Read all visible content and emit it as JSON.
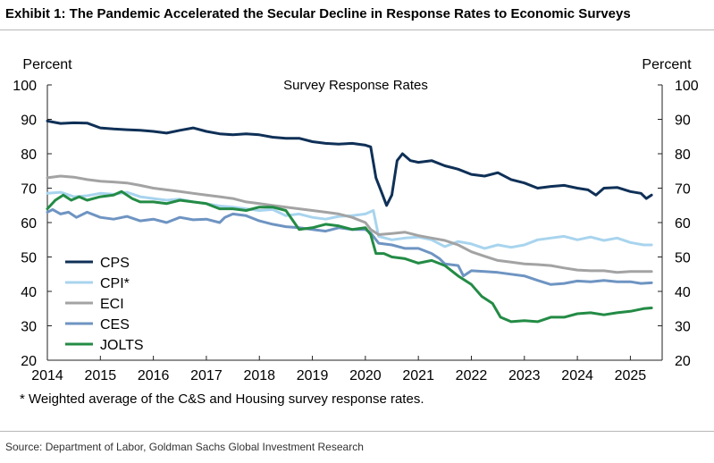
{
  "exhibit_title": "Exhibit 1: The Pandemic Accelerated the Secular Decline in Response Rates to Economic Surveys",
  "footnote": "* Weighted average of the C&S and Housing survey response rates.",
  "source": "Source: Department of Labor, Goldman Sachs Global Investment Research",
  "chart_data": {
    "type": "line",
    "title": "Survey Response Rates",
    "ylabel_left": "Percent",
    "ylabel_right": "Percent",
    "xlabel": "",
    "xlim": [
      2014,
      2025.6
    ],
    "ylim": [
      20,
      100
    ],
    "x_ticks": [
      "2014",
      "2015",
      "2016",
      "2017",
      "2018",
      "2019",
      "2020",
      "2021",
      "2022",
      "2023",
      "2024",
      "2025"
    ],
    "y_ticks": [
      "20",
      "30",
      "40",
      "50",
      "60",
      "70",
      "80",
      "90",
      "100"
    ],
    "grid": false,
    "legend_position": "bottom-left",
    "series": [
      {
        "name": "CPS",
        "color": "#0f3057",
        "points": [
          [
            2014.0,
            89.5
          ],
          [
            2014.25,
            88.8
          ],
          [
            2014.5,
            89.0
          ],
          [
            2014.75,
            88.9
          ],
          [
            2015.0,
            87.5
          ],
          [
            2015.25,
            87.2
          ],
          [
            2015.5,
            87.0
          ],
          [
            2015.75,
            86.8
          ],
          [
            2016.0,
            86.5
          ],
          [
            2016.25,
            86.0
          ],
          [
            2016.5,
            86.8
          ],
          [
            2016.75,
            87.5
          ],
          [
            2017.0,
            86.5
          ],
          [
            2017.25,
            85.8
          ],
          [
            2017.5,
            85.5
          ],
          [
            2017.75,
            85.8
          ],
          [
            2018.0,
            85.5
          ],
          [
            2018.25,
            84.8
          ],
          [
            2018.5,
            84.5
          ],
          [
            2018.75,
            84.5
          ],
          [
            2019.0,
            83.5
          ],
          [
            2019.25,
            83.0
          ],
          [
            2019.5,
            82.8
          ],
          [
            2019.75,
            83.0
          ],
          [
            2020.0,
            82.5
          ],
          [
            2020.1,
            82.0
          ],
          [
            2020.2,
            73.0
          ],
          [
            2020.3,
            69.0
          ],
          [
            2020.4,
            65.0
          ],
          [
            2020.5,
            68.0
          ],
          [
            2020.6,
            78.0
          ],
          [
            2020.7,
            80.0
          ],
          [
            2020.85,
            78.0
          ],
          [
            2021.0,
            77.5
          ],
          [
            2021.25,
            78.0
          ],
          [
            2021.5,
            76.5
          ],
          [
            2021.75,
            75.5
          ],
          [
            2022.0,
            74.0
          ],
          [
            2022.25,
            73.5
          ],
          [
            2022.5,
            74.5
          ],
          [
            2022.75,
            72.5
          ],
          [
            2023.0,
            71.5
          ],
          [
            2023.25,
            70.0
          ],
          [
            2023.5,
            70.5
          ],
          [
            2023.75,
            70.8
          ],
          [
            2024.0,
            70.0
          ],
          [
            2024.2,
            69.5
          ],
          [
            2024.35,
            68.0
          ],
          [
            2024.5,
            70.0
          ],
          [
            2024.75,
            70.2
          ],
          [
            2025.0,
            69.0
          ],
          [
            2025.2,
            68.5
          ],
          [
            2025.3,
            67.0
          ],
          [
            2025.4,
            68.0
          ]
        ]
      },
      {
        "name": "CPI*",
        "color": "#a8d4ee",
        "points": [
          [
            2014.0,
            68.5
          ],
          [
            2014.25,
            68.8
          ],
          [
            2014.5,
            67.5
          ],
          [
            2014.75,
            67.8
          ],
          [
            2015.0,
            68.5
          ],
          [
            2015.25,
            68.2
          ],
          [
            2015.5,
            68.8
          ],
          [
            2015.75,
            67.5
          ],
          [
            2016.0,
            67.0
          ],
          [
            2016.25,
            66.5
          ],
          [
            2016.5,
            66.8
          ],
          [
            2016.75,
            66.0
          ],
          [
            2017.0,
            65.5
          ],
          [
            2017.25,
            64.8
          ],
          [
            2017.5,
            64.5
          ],
          [
            2017.75,
            64.0
          ],
          [
            2018.0,
            63.5
          ],
          [
            2018.25,
            63.8
          ],
          [
            2018.5,
            62.0
          ],
          [
            2018.75,
            62.5
          ],
          [
            2019.0,
            61.5
          ],
          [
            2019.25,
            61.0
          ],
          [
            2019.5,
            61.8
          ],
          [
            2019.75,
            62.0
          ],
          [
            2020.0,
            62.5
          ],
          [
            2020.15,
            63.5
          ],
          [
            2020.25,
            56.0
          ],
          [
            2020.5,
            55.0
          ],
          [
            2020.75,
            55.5
          ],
          [
            2021.0,
            55.8
          ],
          [
            2021.25,
            55.0
          ],
          [
            2021.5,
            53.0
          ],
          [
            2021.75,
            54.5
          ],
          [
            2022.0,
            53.8
          ],
          [
            2022.25,
            52.5
          ],
          [
            2022.5,
            53.5
          ],
          [
            2022.75,
            52.8
          ],
          [
            2023.0,
            53.5
          ],
          [
            2023.25,
            55.0
          ],
          [
            2023.5,
            55.5
          ],
          [
            2023.75,
            56.0
          ],
          [
            2024.0,
            55.0
          ],
          [
            2024.25,
            55.8
          ],
          [
            2024.5,
            54.8
          ],
          [
            2024.75,
            55.5
          ],
          [
            2025.0,
            54.2
          ],
          [
            2025.25,
            53.5
          ],
          [
            2025.4,
            53.5
          ]
        ]
      },
      {
        "name": "ECI",
        "color": "#a3a3a3",
        "points": [
          [
            2014.0,
            73.0
          ],
          [
            2014.25,
            73.5
          ],
          [
            2014.5,
            73.2
          ],
          [
            2014.75,
            72.5
          ],
          [
            2015.0,
            72.0
          ],
          [
            2015.25,
            71.8
          ],
          [
            2015.5,
            71.5
          ],
          [
            2015.75,
            70.8
          ],
          [
            2016.0,
            70.0
          ],
          [
            2016.25,
            69.5
          ],
          [
            2016.5,
            69.0
          ],
          [
            2016.75,
            68.5
          ],
          [
            2017.0,
            68.0
          ],
          [
            2017.25,
            67.5
          ],
          [
            2017.5,
            67.0
          ],
          [
            2017.75,
            66.0
          ],
          [
            2018.0,
            65.5
          ],
          [
            2018.25,
            65.0
          ],
          [
            2018.5,
            64.5
          ],
          [
            2018.75,
            64.0
          ],
          [
            2019.0,
            63.5
          ],
          [
            2019.25,
            63.0
          ],
          [
            2019.5,
            62.5
          ],
          [
            2019.75,
            61.5
          ],
          [
            2020.0,
            60.0
          ],
          [
            2020.1,
            58.0
          ],
          [
            2020.25,
            56.5
          ],
          [
            2020.5,
            56.8
          ],
          [
            2020.75,
            57.2
          ],
          [
            2021.0,
            56.2
          ],
          [
            2021.25,
            55.5
          ],
          [
            2021.5,
            54.8
          ],
          [
            2021.75,
            53.5
          ],
          [
            2022.0,
            51.5
          ],
          [
            2022.25,
            50.2
          ],
          [
            2022.5,
            49.0
          ],
          [
            2022.75,
            48.5
          ],
          [
            2023.0,
            48.0
          ],
          [
            2023.25,
            47.8
          ],
          [
            2023.5,
            47.5
          ],
          [
            2023.75,
            46.8
          ],
          [
            2024.0,
            46.2
          ],
          [
            2024.25,
            46.0
          ],
          [
            2024.5,
            46.0
          ],
          [
            2024.75,
            45.5
          ],
          [
            2025.0,
            45.8
          ],
          [
            2025.4,
            45.8
          ]
        ]
      },
      {
        "name": "CES",
        "color": "#6e94c2",
        "points": [
          [
            2014.0,
            63.0
          ],
          [
            2014.1,
            63.8
          ],
          [
            2014.25,
            62.5
          ],
          [
            2014.4,
            63.0
          ],
          [
            2014.55,
            61.5
          ],
          [
            2014.75,
            63.0
          ],
          [
            2015.0,
            61.5
          ],
          [
            2015.25,
            61.0
          ],
          [
            2015.5,
            61.8
          ],
          [
            2015.75,
            60.5
          ],
          [
            2016.0,
            61.0
          ],
          [
            2016.25,
            60.0
          ],
          [
            2016.5,
            61.5
          ],
          [
            2016.75,
            60.8
          ],
          [
            2017.0,
            61.0
          ],
          [
            2017.25,
            60.0
          ],
          [
            2017.35,
            61.5
          ],
          [
            2017.5,
            62.5
          ],
          [
            2017.75,
            62.0
          ],
          [
            2018.0,
            60.5
          ],
          [
            2018.25,
            59.5
          ],
          [
            2018.5,
            58.8
          ],
          [
            2018.75,
            58.5
          ],
          [
            2019.0,
            58.0
          ],
          [
            2019.25,
            57.5
          ],
          [
            2019.5,
            58.5
          ],
          [
            2019.75,
            58.0
          ],
          [
            2020.0,
            58.0
          ],
          [
            2020.1,
            57.0
          ],
          [
            2020.25,
            54.0
          ],
          [
            2020.5,
            53.5
          ],
          [
            2020.75,
            52.5
          ],
          [
            2021.0,
            52.5
          ],
          [
            2021.25,
            51.0
          ],
          [
            2021.4,
            49.5
          ],
          [
            2021.5,
            48.0
          ],
          [
            2021.75,
            47.5
          ],
          [
            2021.85,
            44.5
          ],
          [
            2022.0,
            46.0
          ],
          [
            2022.25,
            45.8
          ],
          [
            2022.5,
            45.5
          ],
          [
            2022.75,
            45.0
          ],
          [
            2023.0,
            44.5
          ],
          [
            2023.25,
            43.2
          ],
          [
            2023.5,
            42.0
          ],
          [
            2023.75,
            42.3
          ],
          [
            2024.0,
            43.0
          ],
          [
            2024.25,
            42.8
          ],
          [
            2024.5,
            43.2
          ],
          [
            2024.75,
            42.8
          ],
          [
            2025.0,
            42.8
          ],
          [
            2025.2,
            42.3
          ],
          [
            2025.4,
            42.5
          ]
        ]
      },
      {
        "name": "JOLTS",
        "color": "#238b45",
        "points": [
          [
            2014.0,
            64.0
          ],
          [
            2014.15,
            66.5
          ],
          [
            2014.3,
            68.0
          ],
          [
            2014.45,
            66.5
          ],
          [
            2014.6,
            67.5
          ],
          [
            2014.75,
            66.5
          ],
          [
            2015.0,
            67.5
          ],
          [
            2015.25,
            68.0
          ],
          [
            2015.4,
            69.0
          ],
          [
            2015.6,
            67.0
          ],
          [
            2015.75,
            66.0
          ],
          [
            2016.0,
            66.0
          ],
          [
            2016.25,
            65.5
          ],
          [
            2016.5,
            66.5
          ],
          [
            2016.75,
            66.0
          ],
          [
            2017.0,
            65.5
          ],
          [
            2017.25,
            64.0
          ],
          [
            2017.5,
            64.0
          ],
          [
            2017.75,
            63.5
          ],
          [
            2018.0,
            64.5
          ],
          [
            2018.25,
            64.5
          ],
          [
            2018.5,
            63.5
          ],
          [
            2018.75,
            58.0
          ],
          [
            2019.0,
            58.5
          ],
          [
            2019.25,
            59.5
          ],
          [
            2019.5,
            59.0
          ],
          [
            2019.75,
            58.0
          ],
          [
            2020.0,
            58.5
          ],
          [
            2020.1,
            56.5
          ],
          [
            2020.2,
            51.0
          ],
          [
            2020.35,
            51.0
          ],
          [
            2020.5,
            50.0
          ],
          [
            2020.75,
            49.5
          ],
          [
            2021.0,
            48.2
          ],
          [
            2021.25,
            49.0
          ],
          [
            2021.5,
            47.5
          ],
          [
            2021.75,
            44.5
          ],
          [
            2022.0,
            42.0
          ],
          [
            2022.2,
            38.5
          ],
          [
            2022.4,
            36.5
          ],
          [
            2022.55,
            32.5
          ],
          [
            2022.75,
            31.2
          ],
          [
            2023.0,
            31.5
          ],
          [
            2023.25,
            31.2
          ],
          [
            2023.5,
            32.5
          ],
          [
            2023.75,
            32.5
          ],
          [
            2024.0,
            33.5
          ],
          [
            2024.25,
            33.8
          ],
          [
            2024.5,
            33.2
          ],
          [
            2024.75,
            33.8
          ],
          [
            2025.0,
            34.2
          ],
          [
            2025.25,
            35.0
          ],
          [
            2025.4,
            35.2
          ]
        ]
      }
    ]
  }
}
